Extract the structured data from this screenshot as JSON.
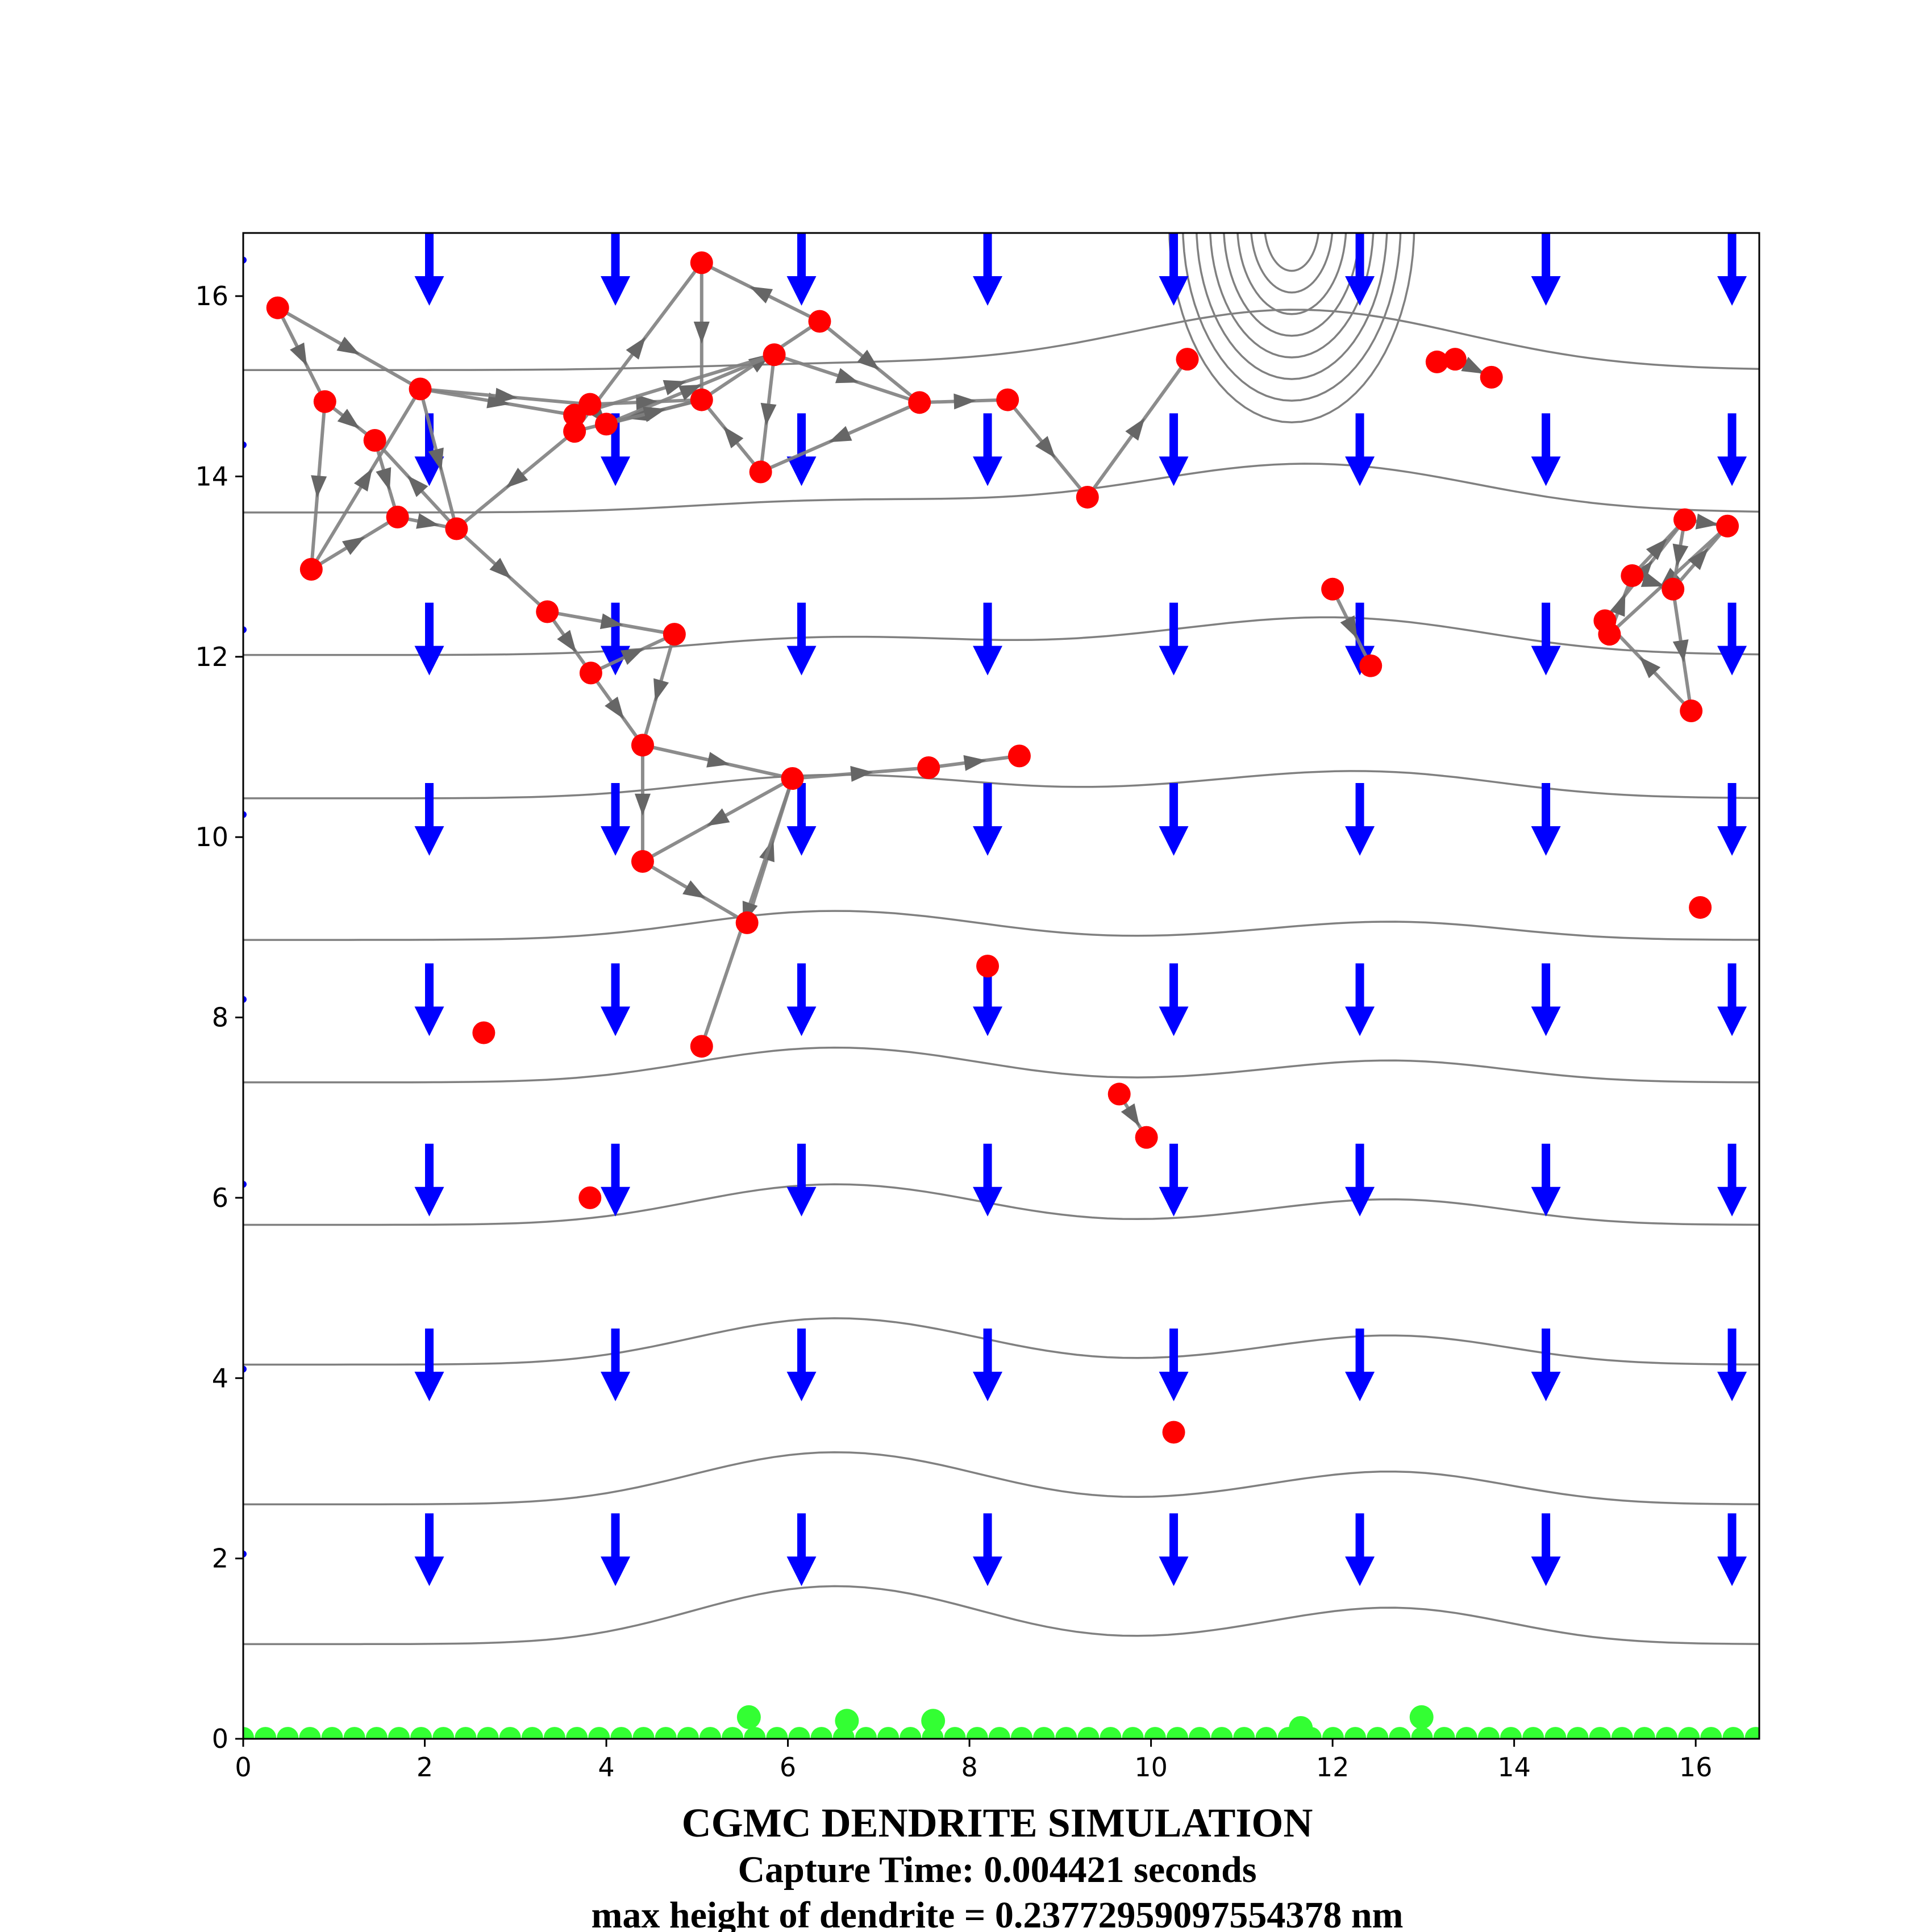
{
  "chart_data": {
    "type": "scatter",
    "title": "CGMC DENDRITE SIMULATION",
    "subtitle_lines": [
      "Capture Time: 0.004421 seconds",
      "max height of dendrite = 0.23772959097554378 nm"
    ],
    "xlabel": "",
    "ylabel": "",
    "xlim": [
      0,
      16.7
    ],
    "ylim": [
      0,
      16.7
    ],
    "xticks": [
      0,
      2,
      4,
      6,
      8,
      10,
      12,
      14,
      16
    ],
    "yticks": [
      0,
      2,
      4,
      6,
      8,
      10,
      12,
      14,
      16
    ],
    "grid": false,
    "legend": "none",
    "colors": {
      "particles": "#ff0000",
      "dendrite": "#33ff33",
      "field_arrows": "#0000ff",
      "contours": "#808080",
      "paths": "#808080"
    },
    "particles": [
      [
        0.38,
        15.87
      ],
      [
        0.9,
        14.83
      ],
      [
        1.45,
        14.4
      ],
      [
        1.95,
        14.97
      ],
      [
        0.75,
        12.97
      ],
      [
        1.7,
        13.55
      ],
      [
        2.35,
        13.42
      ],
      [
        3.35,
        12.5
      ],
      [
        3.65,
        14.68
      ],
      [
        3.82,
        14.8
      ],
      [
        3.65,
        14.5
      ],
      [
        4.0,
        14.58
      ],
      [
        3.83,
        11.82
      ],
      [
        4.75,
        12.25
      ],
      [
        4.4,
        11.02
      ],
      [
        5.05,
        16.37
      ],
      [
        5.05,
        14.85
      ],
      [
        6.35,
        15.72
      ],
      [
        5.85,
        15.35
      ],
      [
        5.7,
        14.05
      ],
      [
        7.45,
        14.82
      ],
      [
        8.42,
        14.85
      ],
      [
        9.3,
        13.77
      ],
      [
        10.4,
        15.3
      ],
      [
        4.4,
        9.73
      ],
      [
        5.55,
        9.05
      ],
      [
        6.05,
        10.65
      ],
      [
        7.55,
        10.77
      ],
      [
        8.55,
        10.9
      ],
      [
        8.2,
        8.57
      ],
      [
        2.65,
        7.83
      ],
      [
        5.05,
        7.68
      ],
      [
        3.82,
        6.0
      ],
      [
        9.65,
        7.15
      ],
      [
        9.95,
        6.67
      ],
      [
        10.25,
        3.4
      ],
      [
        12.0,
        12.75
      ],
      [
        12.42,
        11.9
      ],
      [
        13.15,
        15.27
      ],
      [
        13.35,
        15.3
      ],
      [
        13.75,
        15.1
      ],
      [
        15.0,
        12.4
      ],
      [
        15.05,
        12.25
      ],
      [
        15.3,
        12.9
      ],
      [
        15.75,
        12.75
      ],
      [
        15.88,
        13.52
      ],
      [
        16.35,
        13.45
      ],
      [
        15.95,
        11.4
      ],
      [
        16.05,
        9.22
      ]
    ],
    "dendrite_bumps": [
      [
        5.57,
        0.24
      ],
      [
        6.65,
        0.2
      ],
      [
        7.6,
        0.2
      ],
      [
        11.65,
        0.12
      ],
      [
        12.98,
        0.24
      ]
    ],
    "dendrite_base_height": 0.05,
    "field_grid_x": [
      2.05,
      4.1,
      6.15,
      8.2,
      10.25,
      12.3,
      14.35,
      16.4
    ],
    "field_grid_y": [
      16.7,
      14.7,
      12.6,
      10.6,
      8.6,
      6.6,
      4.55,
      2.5
    ],
    "contour_levels": [
      1.05,
      2.6,
      4.15,
      5.7,
      7.28,
      8.86,
      10.43,
      12.02,
      13.6,
      15.18
    ],
    "paths": [
      [
        [
          0.38,
          15.87
        ],
        [
          0.9,
          14.83
        ],
        [
          1.45,
          14.4
        ],
        [
          1.7,
          13.55
        ],
        [
          2.35,
          13.42
        ]
      ],
      [
        [
          0.38,
          15.87
        ],
        [
          1.95,
          14.97
        ],
        [
          3.65,
          14.68
        ]
      ],
      [
        [
          0.9,
          14.83
        ],
        [
          0.75,
          12.97
        ],
        [
          1.95,
          14.97
        ],
        [
          2.35,
          13.42
        ],
        [
          1.45,
          14.4
        ]
      ],
      [
        [
          0.75,
          12.97
        ],
        [
          1.7,
          13.55
        ]
      ],
      [
        [
          1.95,
          14.97
        ],
        [
          3.82,
          14.8
        ],
        [
          5.05,
          14.85
        ],
        [
          3.65,
          14.5
        ],
        [
          2.35,
          13.42
        ]
      ],
      [
        [
          2.35,
          13.42
        ],
        [
          3.35,
          12.5
        ],
        [
          3.83,
          11.82
        ],
        [
          4.4,
          11.02
        ],
        [
          4.4,
          9.73
        ],
        [
          5.55,
          9.05
        ],
        [
          6.05,
          10.65
        ],
        [
          5.05,
          7.68
        ]
      ],
      [
        [
          3.35,
          12.5
        ],
        [
          4.75,
          12.25
        ],
        [
          4.4,
          11.02
        ],
        [
          6.05,
          10.65
        ],
        [
          7.55,
          10.77
        ],
        [
          8.55,
          10.9
        ]
      ],
      [
        [
          3.83,
          11.82
        ],
        [
          4.75,
          12.25
        ]
      ],
      [
        [
          6.05,
          10.65
        ],
        [
          4.4,
          9.73
        ]
      ],
      [
        [
          3.65,
          14.5
        ],
        [
          5.05,
          16.37
        ],
        [
          5.05,
          14.85
        ],
        [
          6.35,
          15.72
        ],
        [
          5.05,
          16.37
        ]
      ],
      [
        [
          4.0,
          14.58
        ],
        [
          5.85,
          15.35
        ],
        [
          5.7,
          14.05
        ],
        [
          5.05,
          14.85
        ]
      ],
      [
        [
          5.85,
          15.35
        ],
        [
          7.45,
          14.82
        ],
        [
          5.7,
          14.05
        ]
      ],
      [
        [
          6.35,
          15.72
        ],
        [
          7.45,
          14.82
        ],
        [
          8.42,
          14.85
        ],
        [
          9.3,
          13.77
        ],
        [
          10.4,
          15.3
        ]
      ],
      [
        [
          3.65,
          14.68
        ],
        [
          5.85,
          15.35
        ]
      ],
      [
        [
          3.82,
          14.8
        ],
        [
          4.0,
          14.58
        ],
        [
          5.05,
          14.85
        ]
      ],
      [
        [
          9.65,
          7.15
        ],
        [
          9.95,
          6.67
        ]
      ],
      [
        [
          12.0,
          12.75
        ],
        [
          12.42,
          11.9
        ]
      ],
      [
        [
          13.15,
          15.27
        ],
        [
          13.35,
          15.3
        ],
        [
          13.75,
          15.1
        ]
      ],
      [
        [
          15.0,
          12.4
        ],
        [
          15.88,
          13.52
        ],
        [
          16.35,
          13.45
        ],
        [
          15.05,
          12.25
        ],
        [
          15.3,
          12.9
        ],
        [
          15.75,
          12.75
        ],
        [
          15.95,
          11.4
        ],
        [
          15.0,
          12.4
        ]
      ],
      [
        [
          15.3,
          12.9
        ],
        [
          15.88,
          13.52
        ],
        [
          15.75,
          12.75
        ],
        [
          16.35,
          13.45
        ]
      ]
    ]
  }
}
